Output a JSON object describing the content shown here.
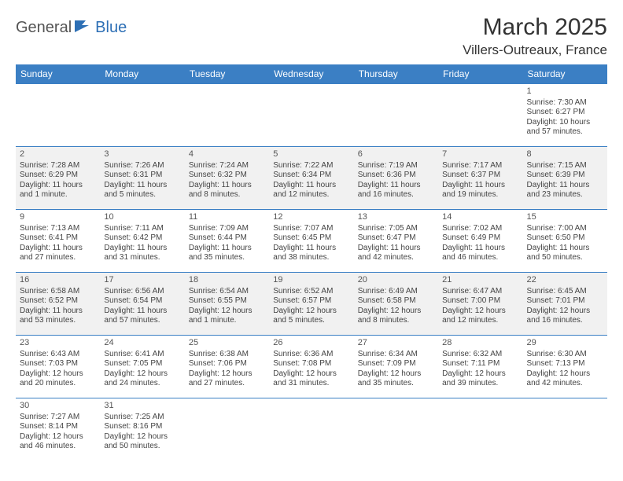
{
  "logo": {
    "part1": "General",
    "part2": "Blue"
  },
  "title": "March 2025",
  "location": "Villers-Outreaux, France",
  "colors": {
    "header_bg": "#3b7fc4",
    "header_text": "#ffffff",
    "row_shade": "#f1f1f1",
    "border": "#3b7fc4",
    "logo_blue": "#2d6fb5",
    "logo_gray": "#555555"
  },
  "typography": {
    "title_fontsize": 30,
    "location_fontsize": 17,
    "day_header_fontsize": 12,
    "cell_fontsize": 10
  },
  "day_names": [
    "Sunday",
    "Monday",
    "Tuesday",
    "Wednesday",
    "Thursday",
    "Friday",
    "Saturday"
  ],
  "weeks": [
    [
      null,
      null,
      null,
      null,
      null,
      null,
      {
        "n": "1",
        "sr": "Sunrise: 7:30 AM",
        "ss": "Sunset: 6:27 PM",
        "dl": "Daylight: 10 hours and 57 minutes."
      }
    ],
    [
      {
        "n": "2",
        "sr": "Sunrise: 7:28 AM",
        "ss": "Sunset: 6:29 PM",
        "dl": "Daylight: 11 hours and 1 minute."
      },
      {
        "n": "3",
        "sr": "Sunrise: 7:26 AM",
        "ss": "Sunset: 6:31 PM",
        "dl": "Daylight: 11 hours and 5 minutes."
      },
      {
        "n": "4",
        "sr": "Sunrise: 7:24 AM",
        "ss": "Sunset: 6:32 PM",
        "dl": "Daylight: 11 hours and 8 minutes."
      },
      {
        "n": "5",
        "sr": "Sunrise: 7:22 AM",
        "ss": "Sunset: 6:34 PM",
        "dl": "Daylight: 11 hours and 12 minutes."
      },
      {
        "n": "6",
        "sr": "Sunrise: 7:19 AM",
        "ss": "Sunset: 6:36 PM",
        "dl": "Daylight: 11 hours and 16 minutes."
      },
      {
        "n": "7",
        "sr": "Sunrise: 7:17 AM",
        "ss": "Sunset: 6:37 PM",
        "dl": "Daylight: 11 hours and 19 minutes."
      },
      {
        "n": "8",
        "sr": "Sunrise: 7:15 AM",
        "ss": "Sunset: 6:39 PM",
        "dl": "Daylight: 11 hours and 23 minutes."
      }
    ],
    [
      {
        "n": "9",
        "sr": "Sunrise: 7:13 AM",
        "ss": "Sunset: 6:41 PM",
        "dl": "Daylight: 11 hours and 27 minutes."
      },
      {
        "n": "10",
        "sr": "Sunrise: 7:11 AM",
        "ss": "Sunset: 6:42 PM",
        "dl": "Daylight: 11 hours and 31 minutes."
      },
      {
        "n": "11",
        "sr": "Sunrise: 7:09 AM",
        "ss": "Sunset: 6:44 PM",
        "dl": "Daylight: 11 hours and 35 minutes."
      },
      {
        "n": "12",
        "sr": "Sunrise: 7:07 AM",
        "ss": "Sunset: 6:45 PM",
        "dl": "Daylight: 11 hours and 38 minutes."
      },
      {
        "n": "13",
        "sr": "Sunrise: 7:05 AM",
        "ss": "Sunset: 6:47 PM",
        "dl": "Daylight: 11 hours and 42 minutes."
      },
      {
        "n": "14",
        "sr": "Sunrise: 7:02 AM",
        "ss": "Sunset: 6:49 PM",
        "dl": "Daylight: 11 hours and 46 minutes."
      },
      {
        "n": "15",
        "sr": "Sunrise: 7:00 AM",
        "ss": "Sunset: 6:50 PM",
        "dl": "Daylight: 11 hours and 50 minutes."
      }
    ],
    [
      {
        "n": "16",
        "sr": "Sunrise: 6:58 AM",
        "ss": "Sunset: 6:52 PM",
        "dl": "Daylight: 11 hours and 53 minutes."
      },
      {
        "n": "17",
        "sr": "Sunrise: 6:56 AM",
        "ss": "Sunset: 6:54 PM",
        "dl": "Daylight: 11 hours and 57 minutes."
      },
      {
        "n": "18",
        "sr": "Sunrise: 6:54 AM",
        "ss": "Sunset: 6:55 PM",
        "dl": "Daylight: 12 hours and 1 minute."
      },
      {
        "n": "19",
        "sr": "Sunrise: 6:52 AM",
        "ss": "Sunset: 6:57 PM",
        "dl": "Daylight: 12 hours and 5 minutes."
      },
      {
        "n": "20",
        "sr": "Sunrise: 6:49 AM",
        "ss": "Sunset: 6:58 PM",
        "dl": "Daylight: 12 hours and 8 minutes."
      },
      {
        "n": "21",
        "sr": "Sunrise: 6:47 AM",
        "ss": "Sunset: 7:00 PM",
        "dl": "Daylight: 12 hours and 12 minutes."
      },
      {
        "n": "22",
        "sr": "Sunrise: 6:45 AM",
        "ss": "Sunset: 7:01 PM",
        "dl": "Daylight: 12 hours and 16 minutes."
      }
    ],
    [
      {
        "n": "23",
        "sr": "Sunrise: 6:43 AM",
        "ss": "Sunset: 7:03 PM",
        "dl": "Daylight: 12 hours and 20 minutes."
      },
      {
        "n": "24",
        "sr": "Sunrise: 6:41 AM",
        "ss": "Sunset: 7:05 PM",
        "dl": "Daylight: 12 hours and 24 minutes."
      },
      {
        "n": "25",
        "sr": "Sunrise: 6:38 AM",
        "ss": "Sunset: 7:06 PM",
        "dl": "Daylight: 12 hours and 27 minutes."
      },
      {
        "n": "26",
        "sr": "Sunrise: 6:36 AM",
        "ss": "Sunset: 7:08 PM",
        "dl": "Daylight: 12 hours and 31 minutes."
      },
      {
        "n": "27",
        "sr": "Sunrise: 6:34 AM",
        "ss": "Sunset: 7:09 PM",
        "dl": "Daylight: 12 hours and 35 minutes."
      },
      {
        "n": "28",
        "sr": "Sunrise: 6:32 AM",
        "ss": "Sunset: 7:11 PM",
        "dl": "Daylight: 12 hours and 39 minutes."
      },
      {
        "n": "29",
        "sr": "Sunrise: 6:30 AM",
        "ss": "Sunset: 7:13 PM",
        "dl": "Daylight: 12 hours and 42 minutes."
      }
    ],
    [
      {
        "n": "30",
        "sr": "Sunrise: 7:27 AM",
        "ss": "Sunset: 8:14 PM",
        "dl": "Daylight: 12 hours and 46 minutes."
      },
      {
        "n": "31",
        "sr": "Sunrise: 7:25 AM",
        "ss": "Sunset: 8:16 PM",
        "dl": "Daylight: 12 hours and 50 minutes."
      },
      null,
      null,
      null,
      null,
      null
    ]
  ]
}
